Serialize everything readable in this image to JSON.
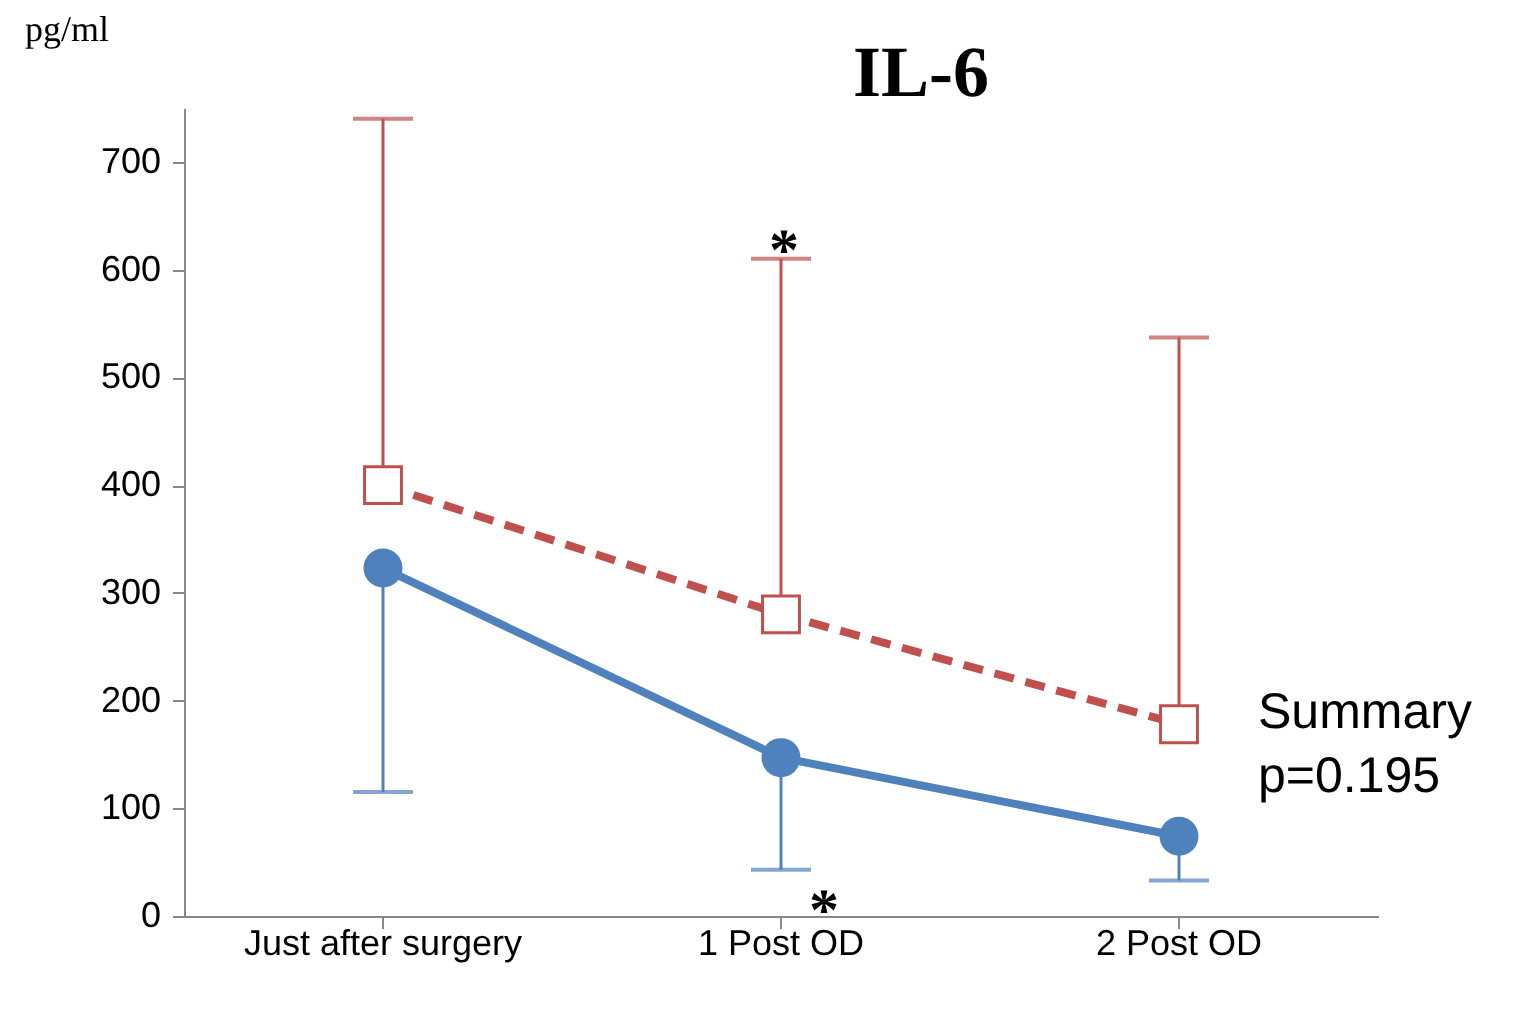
{
  "chart_data": {
    "type": "line",
    "title": "IL-6",
    "ylabel": "pg/ml",
    "categories": [
      "Just after surgery",
      "1 Post OD",
      "2 Post OD"
    ],
    "series": [
      {
        "color": "#c0504d",
        "values": [
          400,
          280,
          178
        ],
        "errors": [
          [
            400,
            740
          ],
          [
            280,
            610
          ],
          [
            178,
            537
          ]
        ],
        "marker": "square",
        "line_style": "dashed"
      },
      {
        "color": "#4f81bd",
        "values": [
          323,
          147,
          74
        ],
        "errors": [
          [
            115,
            323
          ],
          [
            43,
            147
          ],
          [
            33,
            74
          ]
        ],
        "marker": "circle",
        "line_style": "solid"
      }
    ],
    "ylim": [
      0,
      750
    ],
    "yticks": [
      0,
      100,
      200,
      300,
      400,
      500,
      600,
      700
    ],
    "grid": false,
    "legend": false,
    "annotations": [
      "*",
      "*",
      "Summary\np=0.195"
    ]
  }
}
